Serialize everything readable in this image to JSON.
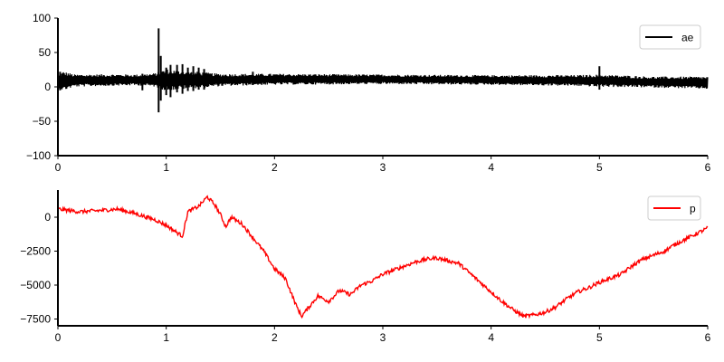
{
  "chart_data": [
    {
      "type": "line",
      "title": "",
      "xlabel": "",
      "ylabel": "",
      "xlim": [
        0,
        6
      ],
      "ylim": [
        -100,
        100
      ],
      "xticks": [
        0,
        1,
        2,
        3,
        4,
        5,
        6
      ],
      "yticks": [
        -100,
        -50,
        0,
        50,
        100
      ],
      "grid": false,
      "legend": "top-right",
      "series": [
        {
          "name": "ae",
          "color": "#000000",
          "baseline": [
            [
              0.0,
              8
            ],
            [
              0.1,
              9
            ],
            [
              0.5,
              10
            ],
            [
              1.0,
              10
            ],
            [
              1.5,
              10
            ],
            [
              2.0,
              11
            ],
            [
              3.0,
              11
            ],
            [
              4.0,
              10
            ],
            [
              5.0,
              9
            ],
            [
              5.5,
              7
            ],
            [
              6.0,
              6
            ]
          ],
          "envelope": [
            [
              0.0,
              9
            ],
            [
              0.05,
              14
            ],
            [
              0.15,
              9
            ],
            [
              0.75,
              8
            ],
            [
              0.9,
              10
            ],
            [
              1.0,
              16
            ],
            [
              1.1,
              14
            ],
            [
              1.3,
              12
            ],
            [
              1.5,
              9
            ],
            [
              2.0,
              8
            ],
            [
              3.0,
              7
            ],
            [
              4.0,
              7
            ],
            [
              4.8,
              8
            ],
            [
              5.0,
              9
            ],
            [
              5.5,
              8
            ],
            [
              6.0,
              9
            ]
          ],
          "spikes": [
            [
              0.02,
              -5,
              22
            ],
            [
              0.78,
              -5,
              19
            ],
            [
              0.93,
              -37,
              85
            ],
            [
              0.95,
              -20,
              45
            ],
            [
              1.0,
              -12,
              28
            ],
            [
              1.04,
              -15,
              32
            ],
            [
              1.1,
              -8,
              32
            ],
            [
              1.15,
              -10,
              33
            ],
            [
              1.2,
              -6,
              28
            ],
            [
              1.25,
              -6,
              30
            ],
            [
              1.3,
              -4,
              28
            ],
            [
              1.35,
              -4,
              26
            ],
            [
              1.8,
              4,
              22
            ],
            [
              5.0,
              -4,
              30
            ]
          ]
        }
      ]
    },
    {
      "type": "line",
      "title": "",
      "xlabel": "",
      "ylabel": "",
      "xlim": [
        0,
        6
      ],
      "ylim": [
        -8000,
        2000
      ],
      "xticks": [
        0,
        1,
        2,
        3,
        4,
        5,
        6
      ],
      "yticks": [
        -7500,
        -5000,
        -2500,
        0
      ],
      "grid": false,
      "legend": "top-right",
      "series": [
        {
          "name": "p",
          "color": "#ff0000",
          "points": [
            [
              0.0,
              600
            ],
            [
              0.2,
              400
            ],
            [
              0.4,
              500
            ],
            [
              0.55,
              600
            ],
            [
              0.7,
              300
            ],
            [
              0.9,
              -200
            ],
            [
              1.0,
              -600
            ],
            [
              1.15,
              -1400
            ],
            [
              1.2,
              400
            ],
            [
              1.3,
              800
            ],
            [
              1.38,
              1500
            ],
            [
              1.45,
              900
            ],
            [
              1.5,
              200
            ],
            [
              1.55,
              -700
            ],
            [
              1.6,
              0
            ],
            [
              1.7,
              -500
            ],
            [
              1.8,
              -1500
            ],
            [
              1.9,
              -2500
            ],
            [
              2.0,
              -3800
            ],
            [
              2.1,
              -4500
            ],
            [
              2.2,
              -6500
            ],
            [
              2.25,
              -7300
            ],
            [
              2.3,
              -6800
            ],
            [
              2.4,
              -5800
            ],
            [
              2.5,
              -6200
            ],
            [
              2.6,
              -5400
            ],
            [
              2.7,
              -5700
            ],
            [
              2.8,
              -5000
            ],
            [
              2.9,
              -4700
            ],
            [
              3.0,
              -4200
            ],
            [
              3.1,
              -3900
            ],
            [
              3.2,
              -3600
            ],
            [
              3.3,
              -3300
            ],
            [
              3.4,
              -3100
            ],
            [
              3.5,
              -3000
            ],
            [
              3.6,
              -3200
            ],
            [
              3.7,
              -3400
            ],
            [
              3.8,
              -4100
            ],
            [
              3.9,
              -4800
            ],
            [
              4.0,
              -5500
            ],
            [
              4.1,
              -6200
            ],
            [
              4.2,
              -6800
            ],
            [
              4.3,
              -7300
            ],
            [
              4.4,
              -7200
            ],
            [
              4.5,
              -7000
            ],
            [
              4.6,
              -6600
            ],
            [
              4.7,
              -6000
            ],
            [
              4.8,
              -5500
            ],
            [
              4.9,
              -5200
            ],
            [
              5.0,
              -4800
            ],
            [
              5.1,
              -4500
            ],
            [
              5.2,
              -4200
            ],
            [
              5.3,
              -3600
            ],
            [
              5.4,
              -3100
            ],
            [
              5.5,
              -2800
            ],
            [
              5.6,
              -2500
            ],
            [
              5.7,
              -2000
            ],
            [
              5.8,
              -1600
            ],
            [
              5.9,
              -1200
            ],
            [
              6.0,
              -800
            ]
          ]
        }
      ]
    }
  ]
}
